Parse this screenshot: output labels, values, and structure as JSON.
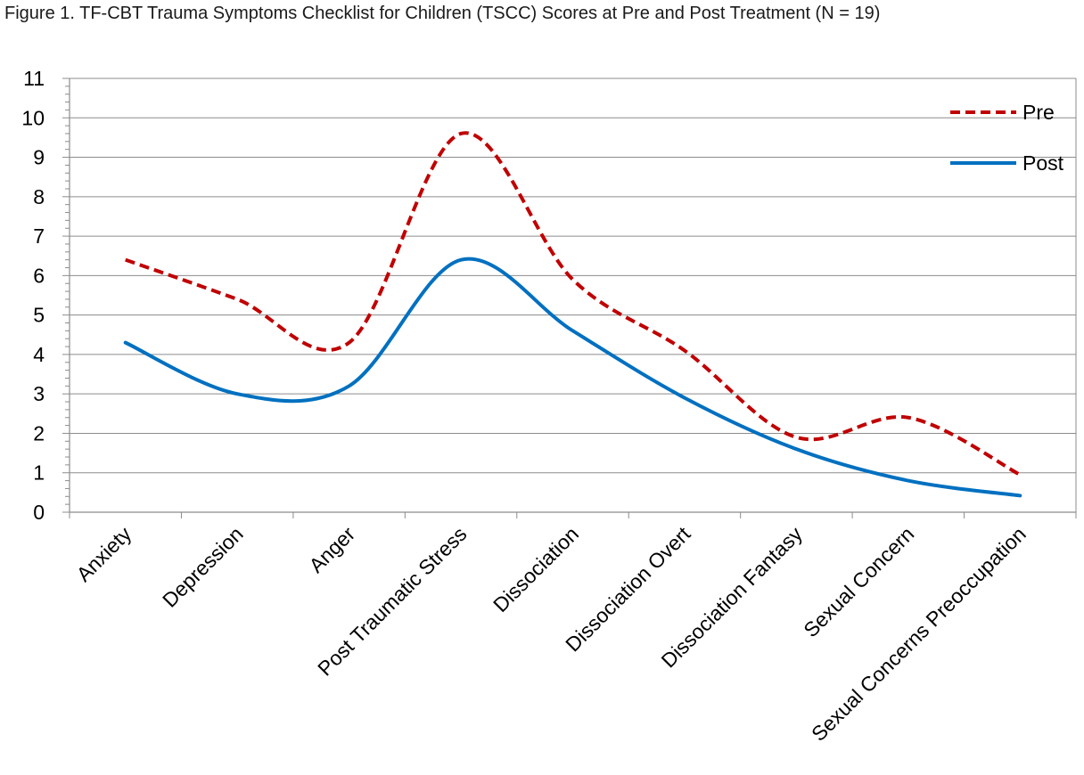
{
  "chart_data": {
    "type": "line",
    "title": "Figure 1. TF-CBT Trauma Symptoms Checklist for Children (TSCC) Scores at Pre and Post Treatment (N = 19)",
    "categories": [
      "Anxiety",
      "Depression",
      "Anger",
      "Post Traumatic Stress",
      "Dissociation",
      "Dissociation Overt",
      "Dissociation Fantasy",
      "Sexual Concern",
      "Sexual Concerns Preoccupation"
    ],
    "series": [
      {
        "name": "Pre",
        "values": [
          6.4,
          5.4,
          4.3,
          9.6,
          5.9,
          4.1,
          1.9,
          2.4,
          0.95
        ],
        "color": "#c00000",
        "style": "dashed"
      },
      {
        "name": "Post",
        "values": [
          4.3,
          3.0,
          3.2,
          6.4,
          4.6,
          2.9,
          1.6,
          0.8,
          0.42
        ],
        "color": "#0070c0",
        "style": "solid"
      }
    ],
    "y_ticks": [
      "0",
      "1",
      "2",
      "3",
      "4",
      "5",
      "6",
      "7",
      "8",
      "9",
      "10",
      "11"
    ],
    "ylim": [
      0,
      11
    ],
    "xlabel": "",
    "ylabel": "",
    "grid": "horizontal",
    "legend_position": "top-right",
    "smoothed": true
  }
}
